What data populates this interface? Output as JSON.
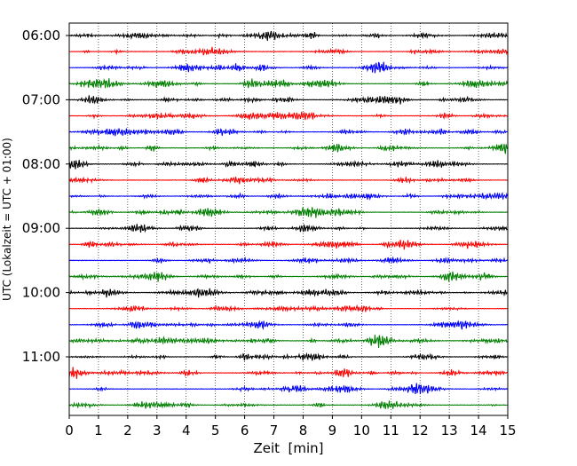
{
  "chart_data": {
    "type": "line",
    "title": "",
    "xlabel": "Zeit  [min]",
    "ylabel": "UTC (Lokalzeit = UTC + 01:00)",
    "xlim": [
      0,
      15
    ],
    "x_ticks": [
      0,
      1,
      2,
      3,
      4,
      5,
      6,
      7,
      8,
      9,
      10,
      11,
      12,
      13,
      14,
      15
    ],
    "x_tick_labels": [
      "0",
      "1",
      "2",
      "3",
      "4",
      "5",
      "6",
      "7",
      "8",
      "9",
      "10",
      "11",
      "12",
      "13",
      "14",
      "15"
    ],
    "y_tick_labels": [
      "06:00",
      "07:00",
      "08:00",
      "09:00",
      "10:00",
      "11:00"
    ],
    "trace_interval_min": 15,
    "start_time": "06:00",
    "num_traces": 24,
    "grid": "vertical dotted lines at each minute",
    "trace_colors": [
      "#000000",
      "#ff0000",
      "#0000ff",
      "#007f00"
    ],
    "traces": [
      {
        "start": "06:00",
        "color": "#000000"
      },
      {
        "start": "06:15",
        "color": "#ff0000"
      },
      {
        "start": "06:30",
        "color": "#0000ff"
      },
      {
        "start": "06:45",
        "color": "#007f00"
      },
      {
        "start": "07:00",
        "color": "#000000"
      },
      {
        "start": "07:15",
        "color": "#ff0000"
      },
      {
        "start": "07:30",
        "color": "#0000ff"
      },
      {
        "start": "07:45",
        "color": "#007f00"
      },
      {
        "start": "08:00",
        "color": "#000000"
      },
      {
        "start": "08:15",
        "color": "#ff0000"
      },
      {
        "start": "08:30",
        "color": "#0000ff"
      },
      {
        "start": "08:45",
        "color": "#007f00"
      },
      {
        "start": "09:00",
        "color": "#000000"
      },
      {
        "start": "09:15",
        "color": "#ff0000"
      },
      {
        "start": "09:30",
        "color": "#0000ff"
      },
      {
        "start": "09:45",
        "color": "#007f00"
      },
      {
        "start": "10:00",
        "color": "#000000"
      },
      {
        "start": "10:15",
        "color": "#ff0000"
      },
      {
        "start": "10:30",
        "color": "#0000ff"
      },
      {
        "start": "10:45",
        "color": "#007f00"
      },
      {
        "start": "11:00",
        "color": "#000000"
      },
      {
        "start": "11:15",
        "color": "#ff0000"
      },
      {
        "start": "11:30",
        "color": "#0000ff"
      },
      {
        "start": "11:45",
        "color": "#007f00"
      }
    ]
  }
}
